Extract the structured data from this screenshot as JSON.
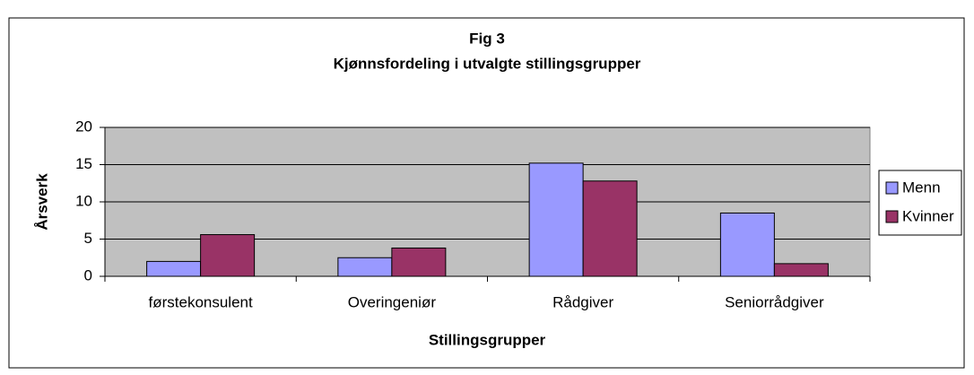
{
  "chart_data": {
    "type": "bar",
    "title": "Fig 3",
    "subtitle": "Kjønnsfordeling i utvalgte stillingsgrupper",
    "x_label": "Stillingsgrupper",
    "y_label": "Årsverk",
    "categories": [
      "førstekonsulent",
      "Overingeniør",
      "Rådgiver",
      "Seniorrådgiver"
    ],
    "series": [
      {
        "name": "Menn",
        "color": "#9999ff",
        "values": [
          2,
          2.5,
          15.2,
          8.5
        ]
      },
      {
        "name": "Kvinner",
        "color": "#993366",
        "values": [
          5.6,
          3.8,
          12.8,
          1.7
        ]
      }
    ],
    "ylim": [
      0,
      20
    ],
    "yticks": [
      0,
      5,
      10,
      15,
      20
    ],
    "grid": true,
    "legend": "right"
  }
}
